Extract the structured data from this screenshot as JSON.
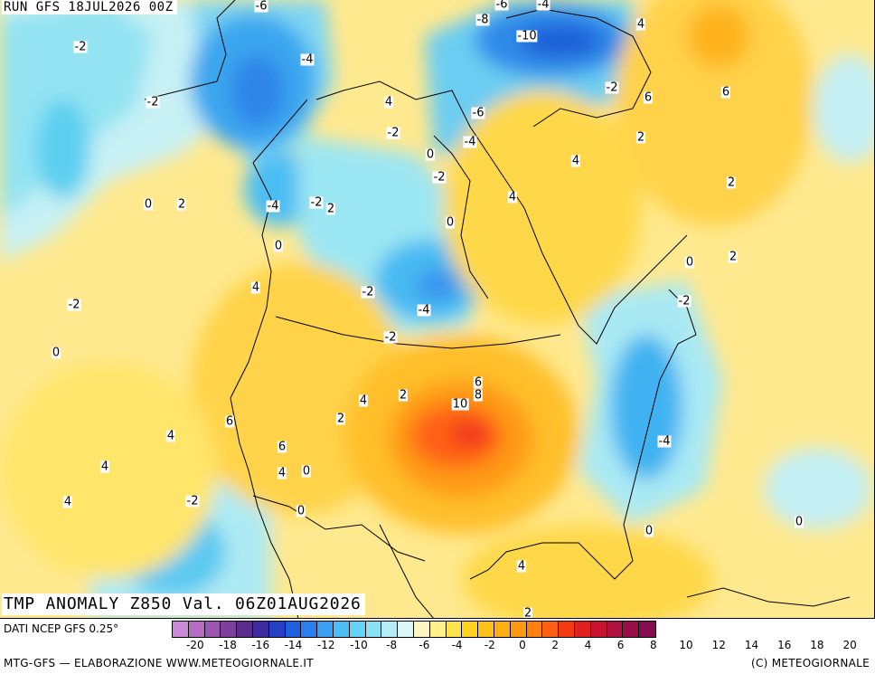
{
  "header": {
    "run_label": "RUN GFS 18JUL2026 00Z"
  },
  "title": {
    "text": "TMP ANOMALY Z850 Val. 06Z01AUG2026"
  },
  "source": {
    "text": "DATI NCEP GFS 0.25°"
  },
  "footer": {
    "left": "MTG-GFS — ELABORAZIONE WWW.METEOGIORNALE.IT",
    "right": "(C) METEOGIORNALE"
  },
  "colorbar": {
    "colors": [
      "#c98ad6",
      "#b56ec4",
      "#9a56b0",
      "#7d3f9a",
      "#5c2c8c",
      "#3c2ca0",
      "#2440c4",
      "#1e5fe0",
      "#2a7ef0",
      "#3aa0f5",
      "#4dbdf5",
      "#66d3f5",
      "#8ae3f5",
      "#b3eef7",
      "#d8f7f5",
      "#fff7c2",
      "#fff08a",
      "#ffe44d",
      "#ffd21f",
      "#ffc21a",
      "#ffad14",
      "#ff9912",
      "#ff7f10",
      "#ff5f10",
      "#f53a12",
      "#e01f1f",
      "#c8142e",
      "#b01040",
      "#9a0e4a",
      "#860c50"
    ],
    "ticks": [
      "-20",
      "-18",
      "-16",
      "-14",
      "-12",
      "-10",
      "-8",
      "-6",
      "-4",
      "-2",
      "0",
      "2",
      "4",
      "6",
      "8",
      "10",
      "12",
      "14",
      "16",
      "18",
      "20"
    ]
  },
  "contour_labels": [
    {
      "t": "-6"
    },
    {
      "t": "-6"
    },
    {
      "t": "-4"
    },
    {
      "t": "4"
    },
    {
      "t": "-8"
    },
    {
      "t": "-10"
    },
    {
      "t": "-2"
    },
    {
      "t": "-4"
    },
    {
      "t": "-2"
    },
    {
      "t": "4"
    },
    {
      "t": "-2"
    },
    {
      "t": "6"
    },
    {
      "t": "6"
    },
    {
      "t": "-6"
    },
    {
      "t": "-2"
    },
    {
      "t": "-4"
    },
    {
      "t": "0"
    },
    {
      "t": "2"
    },
    {
      "t": "4"
    },
    {
      "t": "-2"
    },
    {
      "t": "4"
    },
    {
      "t": "0"
    },
    {
      "t": "2"
    },
    {
      "t": "-4"
    },
    {
      "t": "-2"
    },
    {
      "t": "2"
    },
    {
      "t": "0"
    },
    {
      "t": "0"
    },
    {
      "t": "2"
    },
    {
      "t": "4"
    },
    {
      "t": "-2"
    },
    {
      "t": "-2"
    },
    {
      "t": "-4"
    },
    {
      "t": "-2"
    },
    {
      "t": "-2"
    },
    {
      "t": "0"
    },
    {
      "t": "0"
    },
    {
      "t": "2"
    },
    {
      "t": "6"
    },
    {
      "t": "8"
    },
    {
      "t": "4"
    },
    {
      "t": "10"
    },
    {
      "t": "2"
    },
    {
      "t": "6"
    },
    {
      "t": "2"
    },
    {
      "t": "6"
    },
    {
      "t": "-4"
    },
    {
      "t": "4"
    },
    {
      "t": "4"
    },
    {
      "t": "0"
    },
    {
      "t": "4"
    },
    {
      "t": "-2"
    },
    {
      "t": "0"
    },
    {
      "t": "4"
    },
    {
      "t": "0"
    },
    {
      "t": "0"
    },
    {
      "t": "4"
    },
    {
      "t": "2"
    }
  ]
}
